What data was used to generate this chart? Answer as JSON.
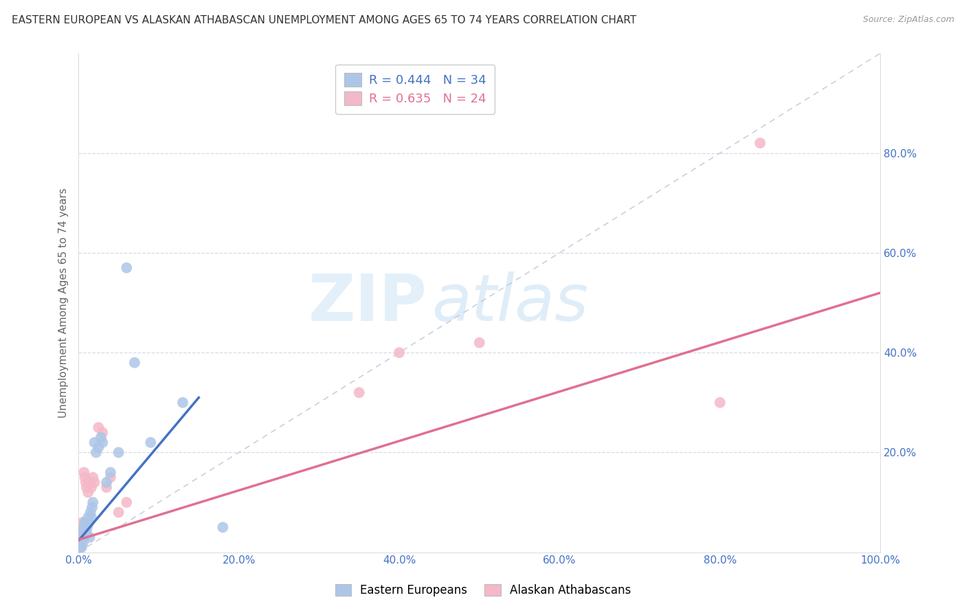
{
  "title": "EASTERN EUROPEAN VS ALASKAN ATHABASCAN UNEMPLOYMENT AMONG AGES 65 TO 74 YEARS CORRELATION CHART",
  "source": "Source: ZipAtlas.com",
  "ylabel": "Unemployment Among Ages 65 to 74 years",
  "xlim": [
    0,
    1.0
  ],
  "ylim": [
    0,
    1.0
  ],
  "xticks": [
    0.0,
    0.2,
    0.4,
    0.6,
    0.8,
    1.0
  ],
  "xticklabels": [
    "0.0%",
    "20.0%",
    "40.0%",
    "60.0%",
    "80.0%",
    "100.0%"
  ],
  "yticks": [
    0.2,
    0.4,
    0.6,
    0.8
  ],
  "yticklabels": [
    "20.0%",
    "40.0%",
    "60.0%",
    "80.0%"
  ],
  "watermark_zip": "ZIP",
  "watermark_atlas": "atlas",
  "legend_r1": "R = 0.444",
  "legend_n1": "N = 34",
  "legend_r2": "R = 0.635",
  "legend_n2": "N = 24",
  "color_blue_fill": "#adc6e8",
  "color_pink_fill": "#f5b8c8",
  "color_blue_text": "#4472c4",
  "color_pink_text": "#e07090",
  "color_trendline_blue": "#4472c4",
  "color_trendline_pink": "#e07090",
  "color_diagonal": "#c0c8d8",
  "label_blue": "Eastern Europeans",
  "label_pink": "Alaskan Athabascans",
  "blue_x": [
    0.002,
    0.003,
    0.004,
    0.005,
    0.006,
    0.006,
    0.007,
    0.007,
    0.008,
    0.008,
    0.009,
    0.01,
    0.01,
    0.011,
    0.012,
    0.013,
    0.014,
    0.015,
    0.016,
    0.017,
    0.018,
    0.02,
    0.022,
    0.025,
    0.028,
    0.03,
    0.035,
    0.04,
    0.05,
    0.06,
    0.07,
    0.09,
    0.13,
    0.18
  ],
  "blue_y": [
    0.01,
    0.02,
    0.01,
    0.03,
    0.02,
    0.04,
    0.03,
    0.05,
    0.04,
    0.06,
    0.05,
    0.04,
    0.06,
    0.05,
    0.07,
    0.06,
    0.03,
    0.08,
    0.07,
    0.09,
    0.1,
    0.22,
    0.2,
    0.21,
    0.23,
    0.22,
    0.14,
    0.16,
    0.2,
    0.57,
    0.38,
    0.22,
    0.3,
    0.05
  ],
  "pink_x": [
    0.002,
    0.004,
    0.005,
    0.006,
    0.007,
    0.008,
    0.009,
    0.01,
    0.012,
    0.014,
    0.016,
    0.018,
    0.02,
    0.025,
    0.03,
    0.035,
    0.04,
    0.05,
    0.06,
    0.35,
    0.4,
    0.5,
    0.8,
    0.85
  ],
  "pink_y": [
    0.05,
    0.04,
    0.06,
    0.03,
    0.16,
    0.15,
    0.14,
    0.13,
    0.12,
    0.14,
    0.13,
    0.15,
    0.14,
    0.25,
    0.24,
    0.13,
    0.15,
    0.08,
    0.1,
    0.32,
    0.4,
    0.42,
    0.3,
    0.82
  ],
  "blue_trend_x": [
    0.001,
    0.15
  ],
  "blue_trend_y": [
    0.025,
    0.31
  ],
  "pink_trend_x": [
    0.0,
    1.0
  ],
  "pink_trend_y": [
    0.025,
    0.52
  ]
}
